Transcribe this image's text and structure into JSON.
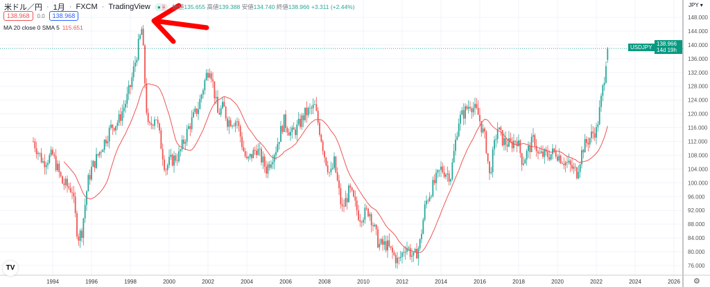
{
  "header": {
    "symbol": "米ドル／円",
    "interval": "1月",
    "exchange": "FXCM",
    "source": "TradingView",
    "open_label": "始値",
    "open": "135.655",
    "high_label": "高値",
    "high": "139.388",
    "low_label": "安値",
    "low": "134.740",
    "close_label": "終値",
    "close": "138.966",
    "change": "+3.311 (+2.44%)"
  },
  "sell_price": "138.968",
  "spread": "0.0",
  "buy_price": "138.968",
  "indicator": {
    "label": "MA 20 close 0 SMA 5",
    "value": "115.651"
  },
  "currency": "JPY",
  "last_label": {
    "symbol": "USDJPY",
    "price": "138.966",
    "countdown": "14d 19h"
  },
  "colors": {
    "up": "#26a69a",
    "down": "#f05350",
    "ma": "#f05350",
    "accent": "#089981",
    "arrow": "#ff0000"
  },
  "chart_data": {
    "type": "candlestick",
    "title": "米ドル／円 1月 FXCM",
    "interval": "monthly",
    "ylim": [
      74,
      150
    ],
    "xlim": [
      1992.3,
      2026.5
    ],
    "yticks": [
      "148.000",
      "144.000",
      "140.000",
      "136.000",
      "132.000",
      "128.000",
      "124.000",
      "120.000",
      "116.000",
      "112.000",
      "108.000",
      "104.000",
      "100.000",
      "96.000",
      "92.000",
      "88.000",
      "84.000",
      "80.000",
      "76.000"
    ],
    "xticks": [
      "1994",
      "1996",
      "1998",
      "2000",
      "2002",
      "2004",
      "2006",
      "2008",
      "2010",
      "2012",
      "2014",
      "2016",
      "2018",
      "2020",
      "2022",
      "2024",
      "2026"
    ],
    "close_path": [
      [
        1993.0,
        112
      ],
      [
        1993.5,
        106
      ],
      [
        1994.0,
        108
      ],
      [
        1994.5,
        100
      ],
      [
        1995.0,
        98
      ],
      [
        1995.3,
        84
      ],
      [
        1995.5,
        86
      ],
      [
        1995.8,
        100
      ],
      [
        1996.0,
        104
      ],
      [
        1996.5,
        110
      ],
      [
        1997.0,
        116
      ],
      [
        1997.4,
        118
      ],
      [
        1997.8,
        124
      ],
      [
        1998.0,
        128
      ],
      [
        1998.6,
        145
      ],
      [
        1998.8,
        124
      ],
      [
        1998.9,
        116
      ],
      [
        1999.0,
        116
      ],
      [
        1999.3,
        120
      ],
      [
        1999.8,
        104
      ],
      [
        2000.0,
        106
      ],
      [
        2000.5,
        108
      ],
      [
        2001.0,
        116
      ],
      [
        2001.5,
        122
      ],
      [
        2001.9,
        131
      ],
      [
        2002.1,
        134
      ],
      [
        2002.5,
        120
      ],
      [
        2002.8,
        122
      ],
      [
        2003.0,
        118
      ],
      [
        2003.5,
        118
      ],
      [
        2003.8,
        110
      ],
      [
        2004.0,
        106
      ],
      [
        2004.5,
        110
      ],
      [
        2005.0,
        104
      ],
      [
        2005.5,
        110
      ],
      [
        2005.9,
        118
      ],
      [
        2006.3,
        114
      ],
      [
        2006.6,
        116
      ],
      [
        2007.0,
        120
      ],
      [
        2007.5,
        122
      ],
      [
        2007.8,
        114
      ],
      [
        2008.0,
        108
      ],
      [
        2008.3,
        102
      ],
      [
        2008.5,
        106
      ],
      [
        2008.9,
        92
      ],
      [
        2009.3,
        98
      ],
      [
        2009.8,
        90
      ],
      [
        2010.3,
        92
      ],
      [
        2010.8,
        82
      ],
      [
        2011.2,
        82
      ],
      [
        2011.8,
        77
      ],
      [
        2012.2,
        82
      ],
      [
        2012.6,
        78
      ],
      [
        2012.9,
        82
      ],
      [
        2013.2,
        94
      ],
      [
        2013.5,
        98
      ],
      [
        2014.0,
        104
      ],
      [
        2014.5,
        102
      ],
      [
        2014.9,
        118
      ],
      [
        2015.5,
        123
      ],
      [
        2015.9,
        120
      ],
      [
        2016.3,
        112
      ],
      [
        2016.5,
        102
      ],
      [
        2016.9,
        116
      ],
      [
        2017.2,
        112
      ],
      [
        2017.6,
        111
      ],
      [
        2017.9,
        113
      ],
      [
        2018.2,
        106
      ],
      [
        2018.8,
        113
      ],
      [
        2019.0,
        108
      ],
      [
        2019.5,
        108
      ],
      [
        2019.9,
        109
      ],
      [
        2020.2,
        107
      ],
      [
        2020.8,
        104
      ],
      [
        2021.0,
        103
      ],
      [
        2021.3,
        110
      ],
      [
        2021.9,
        115
      ],
      [
        2022.0,
        115
      ],
      [
        2022.2,
        122
      ],
      [
        2022.4,
        130
      ],
      [
        2022.5,
        135.655
      ],
      [
        2022.58,
        138.966
      ]
    ],
    "ma": {
      "type": "SMA",
      "length": 20,
      "source": "close"
    },
    "annotation": "red arrow pointing at 1998 high"
  }
}
